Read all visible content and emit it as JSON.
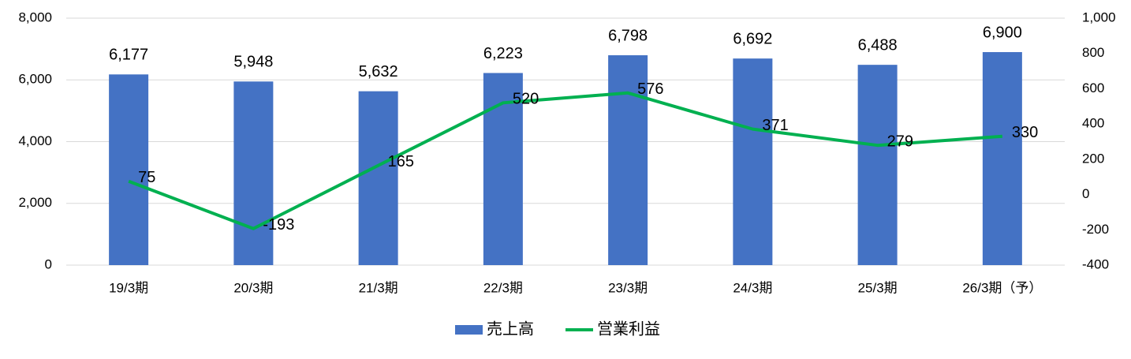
{
  "chart_data": {
    "type": "bar+line",
    "categories": [
      "19/3期",
      "20/3期",
      "21/3期",
      "22/3期",
      "23/3期",
      "24/3期",
      "25/3期",
      "26/3期（予）"
    ],
    "series": [
      {
        "name": "売上高",
        "type": "bar",
        "color": "#4472c4",
        "values": [
          6177,
          5948,
          5632,
          6223,
          6798,
          6692,
          6488,
          6900
        ],
        "value_labels": [
          "6,177",
          "5,948",
          "5,632",
          "6,223",
          "6,798",
          "6,692",
          "6,488",
          "6,900"
        ]
      },
      {
        "name": "営業利益",
        "type": "line",
        "axis": "y2",
        "color": "#00b050",
        "values": [
          75,
          -193,
          165,
          520,
          576,
          371,
          279,
          330
        ]
      }
    ],
    "ylim": [
      0,
      8000
    ],
    "yticks": [
      0,
      {
        "value": 2000,
        "label": "2,000"
      },
      {
        "value": 4000,
        "label": "4,000"
      },
      {
        "value": 6000,
        "label": "6,000"
      },
      {
        "value": 8000,
        "label": "8,000"
      }
    ],
    "y2lim": [
      -400,
      1000
    ],
    "y2ticks": [
      -400,
      -200,
      0,
      200,
      400,
      600,
      800,
      {
        "value": 1000,
        "label": "1,000"
      }
    ],
    "negative_color": "#ff0000",
    "grid": true,
    "legend": "bottom"
  }
}
